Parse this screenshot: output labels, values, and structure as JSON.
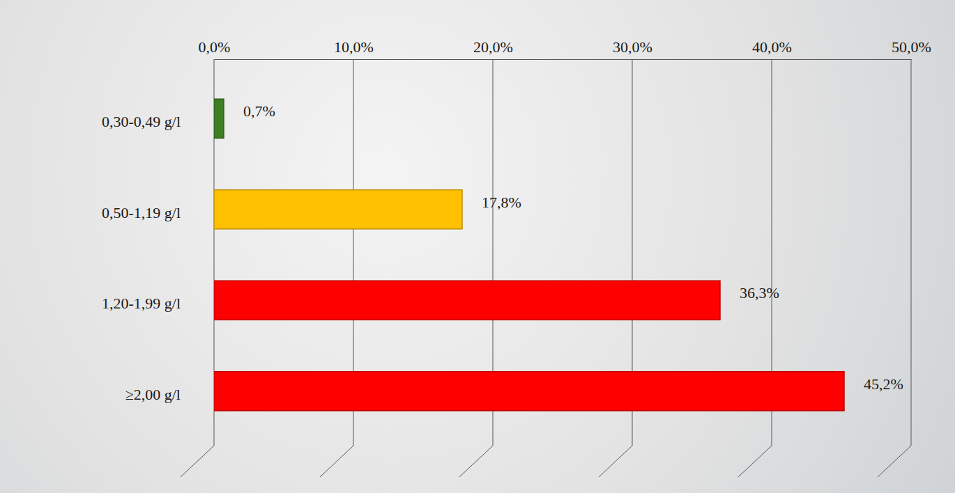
{
  "chart_data": {
    "type": "bar",
    "orientation": "horizontal",
    "categories": [
      "0,30-0,49 g/l",
      "0,50-1,19 g/l",
      "1,20-1,99 g/l",
      "≥2,00 g/l"
    ],
    "values": [
      0.7,
      17.8,
      36.3,
      45.2
    ],
    "value_labels": [
      "0,7%",
      "17,8%",
      "36,3%",
      "45,2%"
    ],
    "colors": [
      "#3f7f24",
      "#ffc000",
      "#ff0000",
      "#ff0000"
    ],
    "xlim": [
      0,
      50
    ],
    "xticks": [
      {
        "value": 0,
        "label": "0,0%"
      },
      {
        "value": 10,
        "label": "10,0%"
      },
      {
        "value": 20,
        "label": "20,0%"
      },
      {
        "value": 30,
        "label": "30,0%"
      },
      {
        "value": 40,
        "label": "40,0%"
      },
      {
        "value": 50,
        "label": "50,0%"
      }
    ],
    "grid": true,
    "data_labels": true
  }
}
